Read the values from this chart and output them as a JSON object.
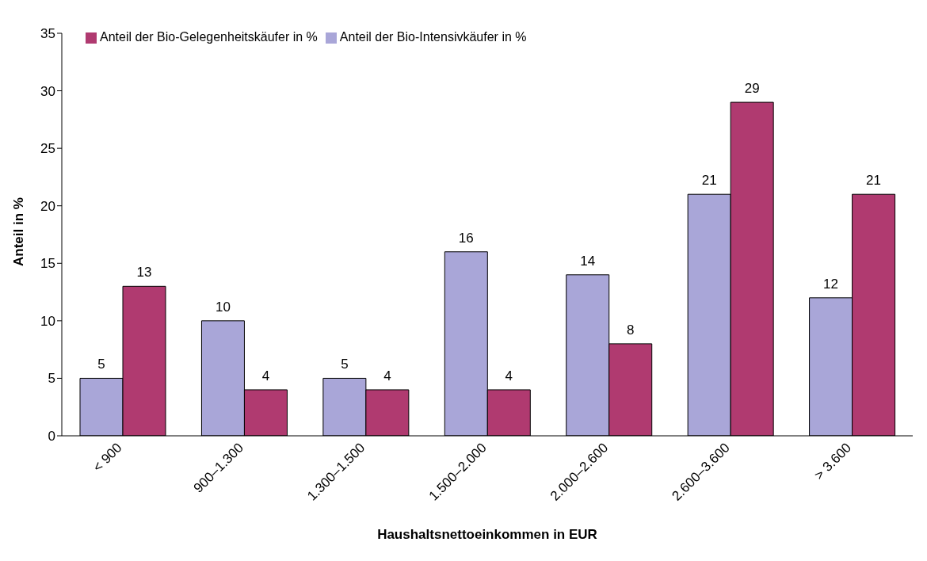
{
  "chart_data": {
    "type": "bar",
    "xlabel": "Haushaltsnettoeinkommen in EUR",
    "ylabel": "Anteil in %",
    "categories": [
      "< 900",
      "900–1.300",
      "1.300–1.500",
      "1.500–2.000",
      "2.000–2.600",
      "2.600–3.600",
      "> 3.600"
    ],
    "series": [
      {
        "name": "Anteil der Bio-Intensivkäufer in %",
        "color": "#a9a6d8",
        "values": [
          5,
          10,
          5,
          16,
          14,
          21,
          12
        ]
      },
      {
        "name": "Anteil der Bio-Gelegenheitskäufer in %",
        "color": "#b03a70",
        "values": [
          13,
          4,
          4,
          4,
          8,
          29,
          21
        ]
      }
    ],
    "ylim": [
      0,
      35
    ],
    "yticks": [
      0,
      5,
      10,
      15,
      20,
      25,
      30,
      35
    ],
    "grid": false,
    "legend": "top left",
    "data_labels": true
  }
}
